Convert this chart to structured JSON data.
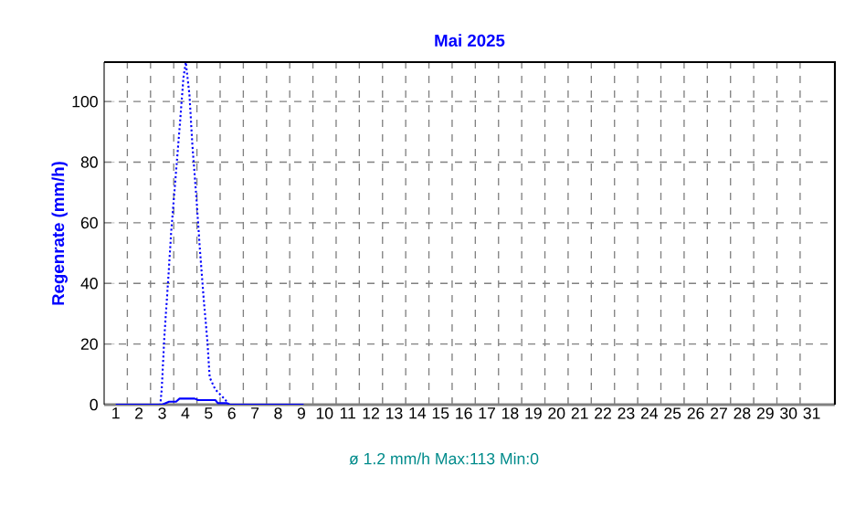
{
  "chart_data": {
    "type": "line",
    "title": "Mai 2025",
    "ylabel": "Regenrate (mm/h)",
    "annotations": [
      "ø 1.2 mm/h Max:113 Min:0"
    ],
    "xlim": [
      0.5,
      32
    ],
    "ylim": [
      0,
      113
    ],
    "xticks": [
      1,
      2,
      3,
      4,
      5,
      6,
      7,
      8,
      9,
      10,
      11,
      12,
      13,
      14,
      15,
      16,
      17,
      18,
      19,
      20,
      21,
      22,
      23,
      24,
      25,
      26,
      27,
      28,
      29,
      30,
      31
    ],
    "yticks": [
      0,
      20,
      40,
      60,
      80,
      100
    ],
    "grid": true,
    "series": [
      {
        "color": "#0000ff",
        "line_style": "dotted",
        "x": [
          2.5,
          2.92,
          2.98,
          3.1,
          3.26,
          3.39,
          3.58,
          3.76,
          3.92,
          4.02,
          4.18,
          4.3,
          4.47,
          4.63,
          4.79,
          4.95,
          5.05,
          5.29,
          5.68,
          5.89,
          6.1
        ],
        "values": [
          0,
          0,
          4.8,
          23,
          41,
          57,
          75,
          92,
          108,
          113,
          102,
          86,
          69,
          51,
          35,
          21,
          9,
          5,
          2,
          0,
          0
        ]
      },
      {
        "color": "#0000ff",
        "line_style": "solid",
        "x": [
          1.0,
          3.0,
          3.3,
          3.6,
          3.75,
          4.4,
          4.55,
          5.3,
          5.4,
          5.8,
          5.9,
          9.1
        ],
        "values": [
          0,
          0,
          1,
          1,
          2,
          2,
          1.5,
          1.5,
          0.5,
          0.5,
          0,
          0
        ]
      }
    ]
  }
}
